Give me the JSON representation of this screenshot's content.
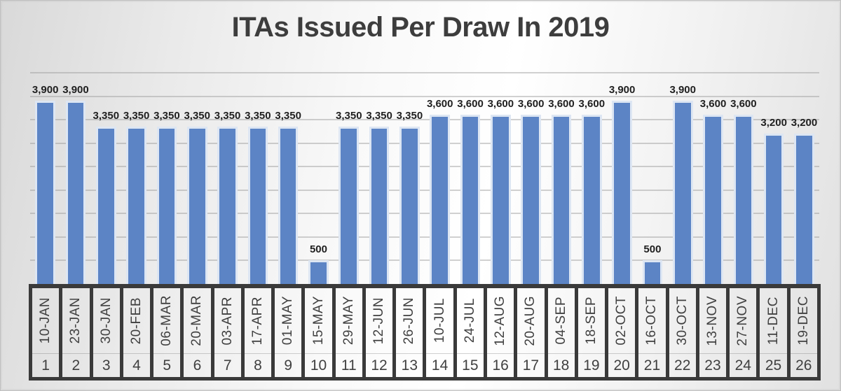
{
  "page": {
    "title": "ITAs Issued Per Draw In 2019"
  },
  "colors": {
    "bar_fill": "#5C84C5",
    "bar_border": "#DDE6F3",
    "gridline": "#9A9A9A",
    "title_text": "#3D3D3D",
    "data_label_text": "#1F1F1F",
    "table_border": "#3A3A3A",
    "table_text": "#404040",
    "background_edge": "#D9D9D9",
    "background_light": "#FFFFFF"
  },
  "chart_data": {
    "type": "bar",
    "title": "ITAs Issued Per Draw In 2019",
    "xlabel": "",
    "ylabel": "",
    "categories": [
      "10-JAN",
      "23-JAN",
      "30-JAN",
      "20-FEB",
      "06-MAR",
      "20-MAR",
      "03-APR",
      "17-APR",
      "01-MAY",
      "15-MAY",
      "29-MAY",
      "12-JUN",
      "26-JUN",
      "10-JUL",
      "24-JUL",
      "12-AUG",
      "20-AUG",
      "04-SEP",
      "18-SEP",
      "02-OCT",
      "16-OCT",
      "30-OCT",
      "13-NOV",
      "27-NOV",
      "11-DEC",
      "19-DEC"
    ],
    "draw_numbers": [
      1,
      2,
      3,
      4,
      5,
      6,
      7,
      8,
      9,
      10,
      11,
      12,
      13,
      14,
      15,
      16,
      17,
      18,
      19,
      20,
      21,
      22,
      23,
      24,
      25,
      26
    ],
    "values": [
      3900,
      3900,
      3350,
      3350,
      3350,
      3350,
      3350,
      3350,
      3350,
      500,
      3350,
      3350,
      3350,
      3600,
      3600,
      3600,
      3600,
      3600,
      3600,
      3900,
      500,
      3900,
      3600,
      3600,
      3200,
      3200
    ],
    "data_labels": [
      "3,900",
      "3,900",
      "3,350",
      "3,350",
      "3,350",
      "3,350",
      "3,350",
      "3,350",
      "3,350",
      "500",
      "3,350",
      "3,350",
      "3,350",
      "3,600",
      "3,600",
      "3,600",
      "3,600",
      "3,600",
      "3,600",
      "3,900",
      "500",
      "3,900",
      "3,600",
      "3,600",
      "3,200",
      "3,200"
    ],
    "ylim": [
      0,
      4500
    ],
    "gridline_step": 500,
    "grid": true,
    "legend": false,
    "y_axis_tick_labels_visible": false,
    "data_labels_visible": true
  }
}
